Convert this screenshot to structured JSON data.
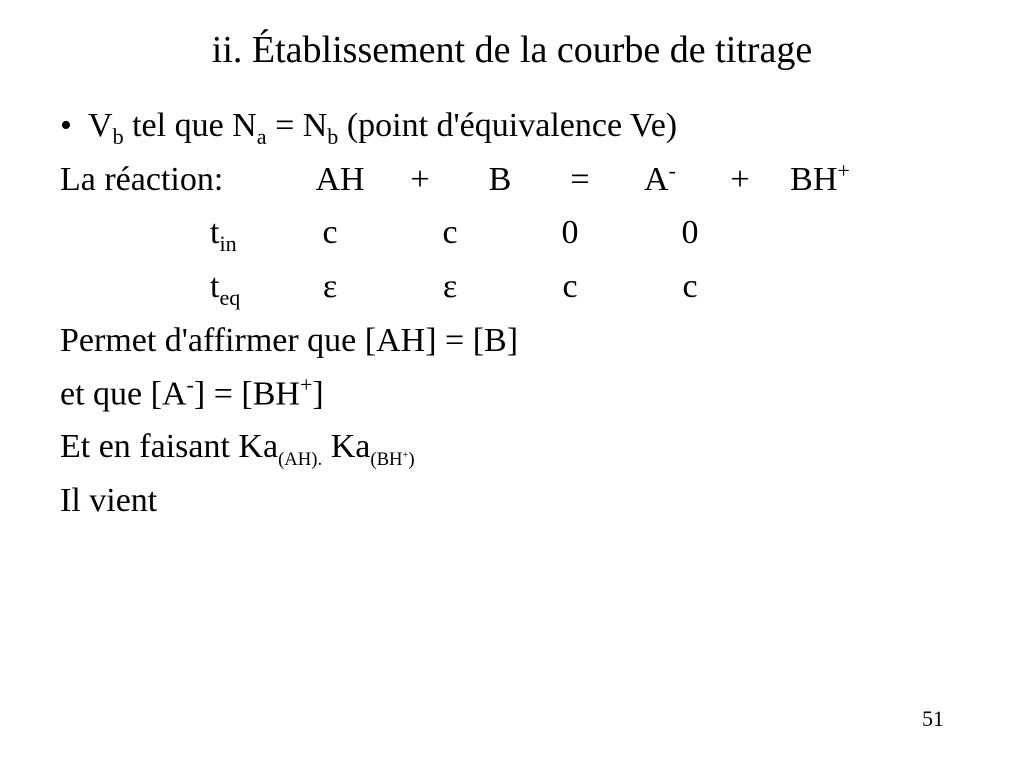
{
  "title": "ii. Établissement de la courbe de titrage",
  "bullet1": {
    "pre": "V",
    "sub1": "b",
    "mid1": " tel que N",
    "sub2": "a",
    "mid2": " = N",
    "sub3": "b",
    "post": " (point d'équivalence Ve)"
  },
  "reaction_label": "La réaction:",
  "reaction": {
    "s1": "AH",
    "op1": "+",
    "s2": "B",
    "op2": "=",
    "s3a": "A",
    "s3sup": "-",
    "op3": "+",
    "s4a": "BH",
    "s4sup": "+"
  },
  "row_tin": {
    "label_main": "t",
    "label_sub": "in",
    "c1": "c",
    "c2": "c",
    "c3": "0",
    "c4": "0"
  },
  "row_teq": {
    "label_main": "t",
    "label_sub": "eq",
    "c1": "ε",
    "c2": "ε",
    "c3": "c",
    "c4": "c"
  },
  "permet": "Permet d'affirmer que [AH] = [B]",
  "etque": {
    "pre": " et que [A",
    "sup1": "-",
    "mid": "] = [BH",
    "sup2": "+",
    "post": "]"
  },
  "enfaisant": {
    "pre": "Et en faisant Ka",
    "sub1": "(AH).",
    "mid": " Ka",
    "sub2a": "(BH",
    "sub2sup": "+",
    "sub2b": ")"
  },
  "ilvient": "Il vient",
  "pagenum": "51",
  "colors": {
    "bg": "#ffffff",
    "text": "#000000"
  }
}
